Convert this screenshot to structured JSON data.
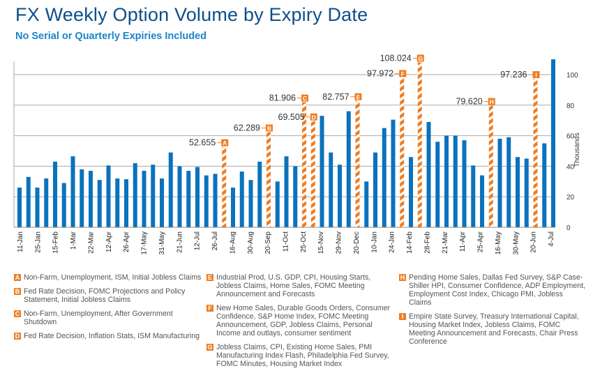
{
  "header": {
    "title": "FX Weekly Option Volume by Expiry Date",
    "subtitle": "No Serial or Quarterly Expiries Included"
  },
  "colors": {
    "bar": "#0b72bd",
    "event": "#ef7d22",
    "title": "#0d4f8b",
    "subtitle": "#1a85c8",
    "grid": "#aaaaaa"
  },
  "chart_data": {
    "type": "bar",
    "title": "FX Weekly Option Volume by Expiry Date",
    "subtitle": "No Serial or Quarterly Expiries Included",
    "xlabel": "",
    "ylabel": "Thousands",
    "ylim": [
      0,
      110
    ],
    "yticks": [
      0,
      20,
      40,
      60,
      80,
      100
    ],
    "grid": true,
    "y_axis_position": "right",
    "x_tick_labels": [
      "11-Jan",
      "25-Jan",
      "15-Feb",
      "1-Mar",
      "22-Mar",
      "12-Apr",
      "26-Apr",
      "17-May",
      "31-May",
      "21-Jun",
      "12-Jul",
      "26-Jul",
      "16-Aug",
      "30-Aug",
      "20-Sep",
      "11-Oct",
      "25-Oct",
      "15-Nov",
      "29-Nov",
      "20-Dec",
      "10-Jan",
      "24-Jan",
      "14-Feb",
      "28-Feb",
      "21-Mar",
      "11-Apr",
      "25-Apr",
      "16-May",
      "30-May",
      "20-Jun",
      "4-Jul"
    ],
    "bars": [
      {
        "value": 26,
        "event": null
      },
      {
        "value": 33,
        "event": null
      },
      {
        "value": 26,
        "event": null
      },
      {
        "value": 32,
        "event": null
      },
      {
        "value": 43,
        "event": null
      },
      {
        "value": 29,
        "event": null
      },
      {
        "value": 46.5,
        "event": null
      },
      {
        "value": 38,
        "event": null
      },
      {
        "value": 37,
        "event": null
      },
      {
        "value": 31,
        "event": null
      },
      {
        "value": 40.5,
        "event": null
      },
      {
        "value": 32,
        "event": null
      },
      {
        "value": 31.5,
        "event": null
      },
      {
        "value": 42,
        "event": null
      },
      {
        "value": 37,
        "event": null
      },
      {
        "value": 41,
        "event": null
      },
      {
        "value": 32,
        "event": null
      },
      {
        "value": 49,
        "event": null
      },
      {
        "value": 40,
        "event": null
      },
      {
        "value": 37,
        "event": null
      },
      {
        "value": 39.5,
        "event": null
      },
      {
        "value": 34,
        "event": null
      },
      {
        "value": 35,
        "event": null
      },
      {
        "value": 52.655,
        "event": "A",
        "label": "52.655"
      },
      {
        "value": 26,
        "event": null
      },
      {
        "value": 36.5,
        "event": null
      },
      {
        "value": 31,
        "event": null
      },
      {
        "value": 43,
        "event": null
      },
      {
        "value": 62.289,
        "event": "B",
        "label": "62.289"
      },
      {
        "value": 30,
        "event": null
      },
      {
        "value": 46.5,
        "event": null
      },
      {
        "value": 40,
        "event": null
      },
      {
        "value": 81.906,
        "event": "C",
        "label": "81.906"
      },
      {
        "value": 69.505,
        "event": "D",
        "label": "69.505"
      },
      {
        "value": 73,
        "event": null
      },
      {
        "value": 49,
        "event": null
      },
      {
        "value": 41,
        "event": null
      },
      {
        "value": 76,
        "event": null
      },
      {
        "value": 82.757,
        "event": "E",
        "label": "82.757"
      },
      {
        "value": 30,
        "event": null
      },
      {
        "value": 49,
        "event": null
      },
      {
        "value": 65,
        "event": null
      },
      {
        "value": 70.5,
        "event": null
      },
      {
        "value": 97.972,
        "event": "F",
        "label": "97.972"
      },
      {
        "value": 46,
        "event": null
      },
      {
        "value": 108.024,
        "event": "G",
        "label": "108.024"
      },
      {
        "value": 69,
        "event": null
      },
      {
        "value": 56,
        "event": null
      },
      {
        "value": 60,
        "event": null
      },
      {
        "value": 60,
        "event": null
      },
      {
        "value": 57,
        "event": null
      },
      {
        "value": 40.5,
        "event": null
      },
      {
        "value": 34,
        "event": null
      },
      {
        "value": 79.62,
        "event": "H",
        "label": "79.620"
      },
      {
        "value": 58,
        "event": null
      },
      {
        "value": 59,
        "event": null
      },
      {
        "value": 46,
        "event": null
      },
      {
        "value": 45,
        "event": null
      },
      {
        "value": 97.236,
        "event": "I",
        "label": "97.236"
      },
      {
        "value": 55,
        "event": null
      },
      {
        "value": 110,
        "event": null
      }
    ],
    "legend": [
      {
        "key": "A",
        "text": "Non-Farm, Unemployment, ISM, Initial Jobless Claims"
      },
      {
        "key": "B",
        "text": "Fed Rate Decision, FOMC Projections and Policy Statement, Initial Jobless Claims"
      },
      {
        "key": "C",
        "text": "Non-Farm, Unemployment, After Government Shutdown"
      },
      {
        "key": "D",
        "text": "Fed Rate Decision, Inflation Stats, ISM Manufacturing"
      },
      {
        "key": "E",
        "text": "Industrial Prod, U.S. GDP, CPI, Housing Starts, Jobless Claims, Home Sales, FOMC Meeting Announcement and Forecasts"
      },
      {
        "key": "F",
        "text": "New Home Sales, Durable Goods Orders, Consumer Confidence, S&P Home Index, FOMC Meeting Announcement, GDP, Jobless Claims, Personal Income and outlays, consumer sentiment"
      },
      {
        "key": "G",
        "text": "Jobless Claims, CPI, Existing Home Sales, PMI Manufacturing Index Flash, Philadelphia Fed Survey, FOMC Minutes, Housing Market Index"
      },
      {
        "key": "H",
        "text": "Pending Home Sales, Dallas Fed Survey, S&P Case-Shiller HPI, Consumer Confidence, ADP Employment, Employment Cost Index, Chicago PMI, Jobless Claims"
      },
      {
        "key": "I",
        "text": "Empire State Survey, Treasury International Capital, Housing Market Index, Jobless Claims, FOMC Meeting Announcement and Forecasts, Chair Press Conference"
      }
    ]
  }
}
